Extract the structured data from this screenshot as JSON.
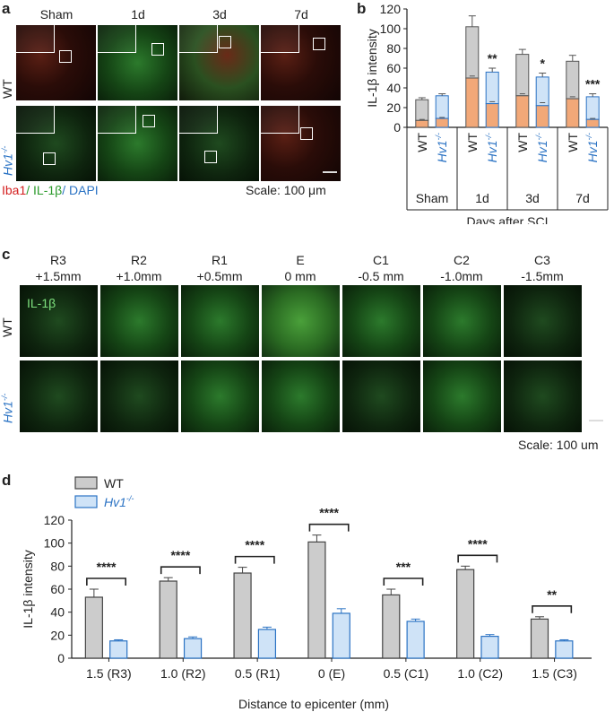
{
  "panel_a": {
    "letter": "a",
    "columns": [
      "Sham",
      "1d",
      "3d",
      "7d"
    ],
    "rows": [
      "WT",
      "Hv1"
    ],
    "row_superscript": "-/-",
    "legend_parts": [
      {
        "text": "Iba1",
        "color": "#d42020"
      },
      {
        "text": "/ IL-1β",
        "color": "#2a9a2a"
      },
      {
        "text": "/ DAPI",
        "color": "#2b73c4"
      }
    ],
    "scale": "Scale: 100 μm"
  },
  "panel_c": {
    "letter": "c",
    "columns": [
      {
        "region": "R3",
        "dist": "+1.5mm"
      },
      {
        "region": "R2",
        "dist": "+1.0mm"
      },
      {
        "region": "R1",
        "dist": "+0.5mm"
      },
      {
        "region": "E",
        "dist": "0 mm"
      },
      {
        "region": "C1",
        "dist": "-0.5 mm"
      },
      {
        "region": "C2",
        "dist": "-1.0mm"
      },
      {
        "region": "C3",
        "dist": "-1.5mm"
      }
    ],
    "rows": [
      "WT",
      "Hv1"
    ],
    "row_superscript": "-/-",
    "stain_label": "IL-1β",
    "scale": "Scale: 100 um"
  },
  "chart_data": [
    {
      "panel": "b",
      "type": "bar",
      "stacked": true,
      "ylabel": "IL-1β intensity",
      "xlabel": "Days after SCI",
      "ylim": [
        0,
        120
      ],
      "yticks": [
        0,
        20,
        40,
        60,
        80,
        100,
        120
      ],
      "groups": [
        "Sham",
        "1d",
        "3d",
        "7d"
      ],
      "categories": [
        "WT",
        "Hv1-/-",
        "WT",
        "Hv1-/-",
        "WT",
        "Hv1-/-",
        "WT",
        "Hv1-/-"
      ],
      "category_labels": [
        "WT",
        "Hv1",
        "WT",
        "Hv1",
        "WT",
        "Hv1",
        "WT",
        "Hv1"
      ],
      "category_superscripts": [
        "",
        "-/-",
        "",
        "-/-",
        "",
        "-/-",
        "",
        "-/-"
      ],
      "totals": [
        28,
        32,
        102,
        56,
        74,
        51,
        67,
        31
      ],
      "total_errors": [
        2,
        2,
        11,
        4,
        5,
        4,
        6,
        3
      ],
      "lower_segment": [
        7,
        9,
        50,
        24,
        32,
        22,
        29,
        8
      ],
      "lower_errors": [
        1,
        1,
        2,
        2,
        2,
        3,
        2,
        1
      ],
      "significance": [
        "",
        "",
        "",
        "**",
        "",
        "*",
        "",
        "***"
      ],
      "colors": {
        "wt_top": "#cccccc",
        "hv_top": "#cfe3f7",
        "lower": "#f2a878",
        "hv_edge": "#2b73c4",
        "wt_edge": "#555555"
      }
    },
    {
      "panel": "d",
      "type": "bar",
      "ylabel": "IL-1β intensity",
      "xlabel": "Distance to epicenter (mm)",
      "ylim": [
        0,
        120
      ],
      "yticks": [
        0,
        20,
        40,
        60,
        80,
        100,
        120
      ],
      "categories": [
        "1.5 (R3)",
        "1.0 (R2)",
        "0.5 (R1)",
        "0 (E)",
        "0.5 (C1)",
        "1.0 (C2)",
        "1.5 (C3)"
      ],
      "series": [
        {
          "name": "WT",
          "values": [
            53,
            67,
            74,
            101,
            55,
            77,
            34
          ],
          "errors": [
            7,
            3,
            5,
            6,
            5,
            3,
            2
          ],
          "color": "#cccccc",
          "edge": "#444444"
        },
        {
          "name": "Hv1",
          "name_superscript": "-/-",
          "values": [
            15,
            17,
            25,
            39,
            32,
            19,
            15
          ],
          "errors": [
            1,
            1.5,
            2,
            4,
            2,
            1.5,
            1
          ],
          "color": "#cfe3f7",
          "edge": "#2b73c4"
        }
      ],
      "significance": [
        "****",
        "****",
        "****",
        "****",
        "***",
        "****",
        "**"
      ]
    }
  ]
}
